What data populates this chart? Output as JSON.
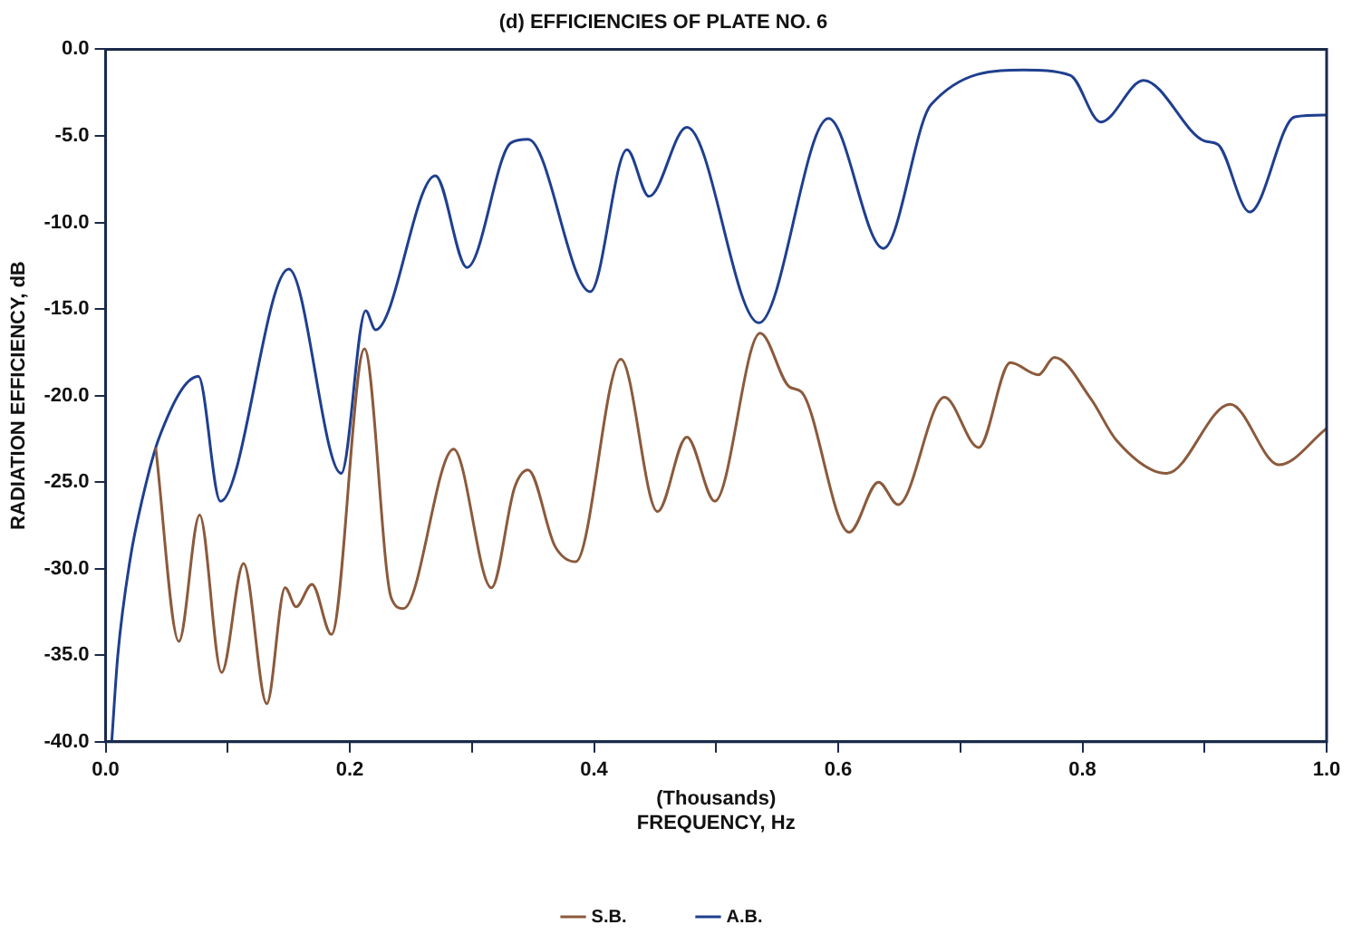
{
  "chart_data": {
    "type": "line",
    "title": "(d) EFFICIENCIES OF PLATE NO. 6",
    "xlabel": "(Thousands)\nFREQUENCY, Hz",
    "ylabel": "RADIATION EFFICIENCY, dB",
    "xlim": [
      0,
      1
    ],
    "ylim": [
      -40,
      0
    ],
    "xticks": [
      {
        "value": 0,
        "label": "0.0"
      },
      {
        "value": 0.1,
        "label": null
      },
      {
        "value": 0.2,
        "label": "0.2"
      },
      {
        "value": 0.3,
        "label": null
      },
      {
        "value": 0.4,
        "label": "0.4"
      },
      {
        "value": 0.5,
        "label": null
      },
      {
        "value": 0.6,
        "label": "0.6"
      },
      {
        "value": 0.7,
        "label": null
      },
      {
        "value": 0.8,
        "label": "0.8"
      },
      {
        "value": 0.9,
        "label": null
      },
      {
        "value": 1,
        "label": "1.0"
      }
    ],
    "yticks": [
      {
        "value": -40,
        "label": "-40.0"
      },
      {
        "value": -35,
        "label": "-35.0"
      },
      {
        "value": -30,
        "label": "-30.0"
      },
      {
        "value": -25,
        "label": "-25.0"
      },
      {
        "value": -20,
        "label": "-20.0"
      },
      {
        "value": -15,
        "label": "-15.0"
      },
      {
        "value": -10,
        "label": "-10.0"
      },
      {
        "value": -5,
        "label": "-5.0"
      },
      {
        "value": 0,
        "label": "0.0"
      }
    ],
    "grid": false,
    "legend": "bottom",
    "marker": "none",
    "line_style": "solid",
    "series": [
      {
        "name": "S.B.",
        "color": "#8b5a3c",
        "x": [
          0.041,
          0.06,
          0.077,
          0.095,
          0.113,
          0.132,
          0.147,
          0.156,
          0.169,
          0.185,
          0.212,
          0.234,
          0.244,
          0.285,
          0.316,
          0.335,
          0.346,
          0.368,
          0.385,
          0.422,
          0.452,
          0.476,
          0.499,
          0.536,
          0.56,
          0.57,
          0.609,
          0.633,
          0.649,
          0.687,
          0.715,
          0.741,
          0.764,
          0.777,
          0.807,
          0.828,
          0.869,
          0.921,
          0.961,
          1.0
        ],
        "values": [
          -23,
          -34.2,
          -26.9,
          -36,
          -29.7,
          -37.8,
          -31.1,
          -32.2,
          -30.9,
          -33.8,
          -17.3,
          -31.7,
          -32.3,
          -23.1,
          -31.1,
          -25.3,
          -24.3,
          -28.7,
          -29.6,
          -17.9,
          -26.7,
          -22.4,
          -26.1,
          -16.4,
          -19.5,
          -19.8,
          -27.9,
          -25,
          -26.3,
          -20.1,
          -23,
          -18.1,
          -18.8,
          -17.8,
          -20.2,
          -22.6,
          -24.5,
          -20.5,
          -24,
          -21.9
        ]
      },
      {
        "name": "A.B.",
        "color": "#1f3f8f",
        "x": [
          0.005,
          0.01,
          0.02,
          0.03,
          0.044,
          0.076,
          0.094,
          0.15,
          0.193,
          0.213,
          0.221,
          0.27,
          0.296,
          0.332,
          0.346,
          0.397,
          0.427,
          0.445,
          0.476,
          0.535,
          0.592,
          0.637,
          0.676,
          0.752,
          0.79,
          0.815,
          0.85,
          0.9,
          0.911,
          0.937,
          0.974,
          1.0
        ],
        "values": [
          -40,
          -35,
          -29.5,
          -26,
          -22.4,
          -18.9,
          -26.1,
          -12.7,
          -24.5,
          -15.1,
          -16.2,
          -7.3,
          -12.6,
          -5.4,
          -5.2,
          -14,
          -5.8,
          -8.5,
          -4.5,
          -15.8,
          -4,
          -11.5,
          -3.2,
          -1.2,
          -1.5,
          -4.2,
          -1.8,
          -5.3,
          -5.5,
          -9.4,
          -3.9,
          -3.8
        ]
      }
    ]
  }
}
